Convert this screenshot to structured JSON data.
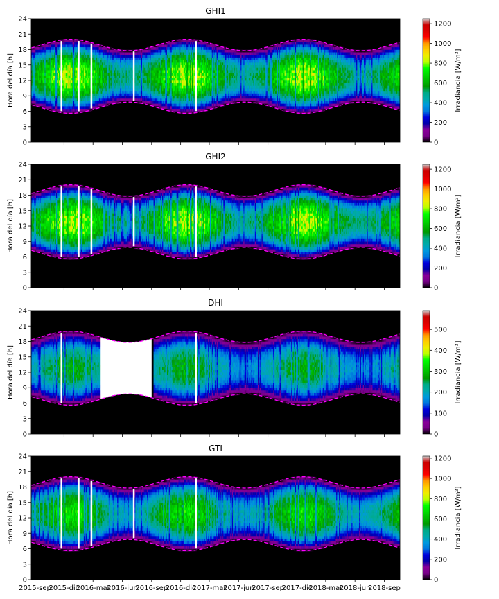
{
  "chart_data": [
    {
      "type": "heatmap",
      "title": "GHI1",
      "ylabel": "Hora del día [h]",
      "yticks": [
        0,
        3,
        6,
        9,
        12,
        15,
        18,
        21,
        24
      ],
      "ylim": [
        0,
        24
      ],
      "colorbar_label": "Irradiancia [W/m²]",
      "colorbar_ticks": [
        0,
        200,
        400,
        600,
        800,
        1000,
        1200
      ],
      "zmax": 1250,
      "peak_level": 0.72,
      "gap_days": [
        95,
        149,
        189,
        322,
        517
      ],
      "blank_range": null
    },
    {
      "type": "heatmap",
      "title": "GHI2",
      "ylabel": "Hora del día [h]",
      "yticks": [
        0,
        3,
        6,
        9,
        12,
        15,
        18,
        21,
        24
      ],
      "ylim": [
        0,
        24
      ],
      "colorbar_label": "Irradiancia [W/m²]",
      "colorbar_ticks": [
        0,
        200,
        400,
        600,
        800,
        1000,
        1200
      ],
      "zmax": 1250,
      "peak_level": 0.72,
      "gap_days": [
        95,
        149,
        189,
        322,
        517
      ],
      "blank_range": null
    },
    {
      "type": "heatmap",
      "title": "DHI",
      "ylabel": "Hora del día [h]",
      "yticks": [
        0,
        3,
        6,
        9,
        12,
        15,
        18,
        21,
        24
      ],
      "ylim": [
        0,
        24
      ],
      "colorbar_label": "Irradiancia [W/m²]",
      "colorbar_ticks": [
        0,
        100,
        200,
        300,
        400,
        500
      ],
      "zmax": 590,
      "peak_level": 0.52,
      "gap_days": [
        95,
        322,
        517
      ],
      "blank_range": [
        "2016-03-25",
        "2016-09-05"
      ]
    },
    {
      "type": "heatmap",
      "title": "GTI",
      "ylabel": "Hora del día [h]",
      "yticks": [
        0,
        3,
        6,
        9,
        12,
        15,
        18,
        21,
        24
      ],
      "ylim": [
        0,
        24
      ],
      "colorbar_label": "Irradiancia [W/m²]",
      "colorbar_ticks": [
        0,
        200,
        400,
        600,
        800,
        1000,
        1200
      ],
      "zmax": 1220,
      "peak_level": 0.62,
      "gap_days": [
        95,
        149,
        189,
        322,
        517
      ],
      "blank_range": null
    }
  ],
  "x_axis": {
    "xlim": [
      "2015-08-20",
      "2018-10-20"
    ],
    "ticks": [
      "2015-09-01",
      "2015-12-01",
      "2016-03-01",
      "2016-06-01",
      "2016-09-01",
      "2016-12-01",
      "2017-03-01",
      "2017-06-01",
      "2017-09-01",
      "2017-12-01",
      "2018-03-01",
      "2018-06-01",
      "2018-09-01"
    ],
    "tick_labels": [
      "2015-sep",
      "2015-dic",
      "2016-mar",
      "2016-jun",
      "2016-sep",
      "2016-dic",
      "2017-mar",
      "2017-jun",
      "2017-sep",
      "2017-dic",
      "2018-mar",
      "2018-jun",
      "2018-sep"
    ]
  },
  "daylight_envelope": {
    "sunrise_range_h": [
      5.6,
      7.8
    ],
    "sunset_range_h": [
      17.8,
      20.0
    ],
    "line_color": "#ff00ff",
    "line_style": "dashed"
  },
  "colormap": "nipy_spectral",
  "colors": {
    "background_night": "#000000",
    "missing": "#ffffff",
    "envelope": "#ff00ff"
  }
}
